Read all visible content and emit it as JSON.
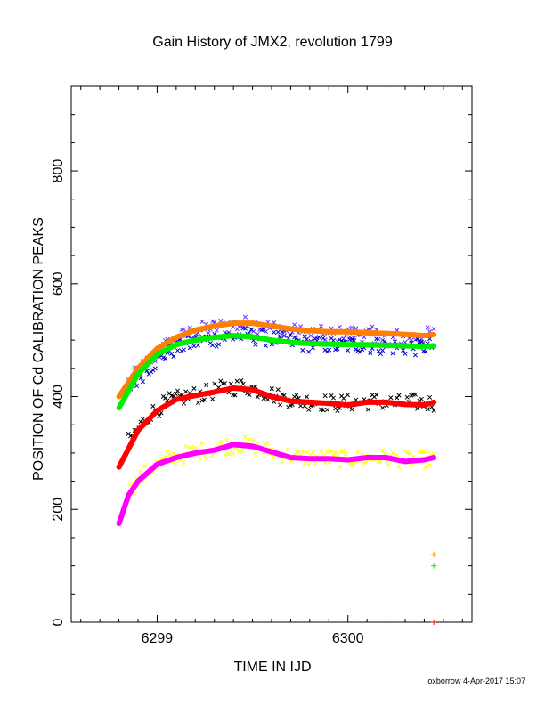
{
  "chart_data": {
    "type": "scatter",
    "title": "Gain History of JMX2, revolution 1799",
    "xlabel": "TIME IN IJD",
    "ylabel": "POSITION OF Cd CALIBRATION PEAKS",
    "xlim": [
      6298.55,
      6300.65
    ],
    "ylim": [
      0,
      950
    ],
    "x_ticks": [
      "6299",
      "6300"
    ],
    "y_ticks": [
      "0",
      "200",
      "400",
      "600",
      "800"
    ],
    "grid": false,
    "legend": "none",
    "footer": "oxborrow  4-Apr-2017 15:07",
    "series": [
      {
        "color": "#6633ff",
        "style": "scatter",
        "x": [
          6298.85,
          6298.95,
          6299.05,
          6299.15,
          6299.25,
          6299.35,
          6299.45,
          6299.55,
          6299.65,
          6299.75,
          6299.85,
          6299.95,
          6300.05,
          6300.15,
          6300.25,
          6300.35,
          6300.45
        ],
        "y": [
          425,
          460,
          490,
          510,
          520,
          525,
          528,
          525,
          518,
          512,
          510,
          510,
          512,
          508,
          505,
          505,
          510
        ]
      },
      {
        "color": "#0000cc",
        "style": "scatter",
        "x": [
          6298.85,
          6298.95,
          6299.05,
          6299.15,
          6299.25,
          6299.35,
          6299.45,
          6299.55,
          6299.65,
          6299.75,
          6299.85,
          6299.95,
          6300.05,
          6300.15,
          6300.25,
          6300.35,
          6300.45
        ],
        "y": [
          415,
          450,
          478,
          492,
          500,
          505,
          508,
          505,
          500,
          495,
          492,
          490,
          492,
          490,
          488,
          487,
          490
        ]
      },
      {
        "color": "#000000",
        "style": "scatter",
        "x": [
          6298.85,
          6298.95,
          6299.05,
          6299.15,
          6299.25,
          6299.35,
          6299.45,
          6299.55,
          6299.65,
          6299.75,
          6299.85,
          6299.95,
          6300.05,
          6300.15,
          6300.25,
          6300.35,
          6300.45
        ],
        "y": [
          320,
          365,
          390,
          400,
          405,
          415,
          418,
          410,
          398,
          392,
          390,
          388,
          390,
          392,
          388,
          390,
          388
        ]
      },
      {
        "color": "#ffff00",
        "style": "scatter",
        "x": [
          6298.85,
          6298.95,
          6299.05,
          6299.15,
          6299.25,
          6299.35,
          6299.45,
          6299.55,
          6299.65,
          6299.75,
          6299.85,
          6299.95,
          6300.05,
          6300.15,
          6300.25,
          6300.35,
          6300.45
        ],
        "y": [
          230,
          268,
          288,
          298,
          305,
          312,
          315,
          308,
          298,
          292,
          292,
          290,
          290,
          292,
          290,
          288,
          290
        ]
      },
      {
        "color": "#ff7f00",
        "style": "line",
        "x": [
          6298.8,
          6298.9,
          6299.0,
          6299.1,
          6299.2,
          6299.3,
          6299.4,
          6299.5,
          6299.6,
          6299.7,
          6299.8,
          6299.9,
          6300.0,
          6300.1,
          6300.2,
          6300.3,
          6300.4,
          6300.45
        ],
        "y": [
          400,
          450,
          485,
          505,
          518,
          525,
          530,
          530,
          525,
          520,
          517,
          515,
          515,
          513,
          512,
          510,
          508,
          510
        ]
      },
      {
        "color": "#00ee00",
        "style": "line",
        "x": [
          6298.8,
          6298.9,
          6299.0,
          6299.1,
          6299.2,
          6299.3,
          6299.4,
          6299.5,
          6299.6,
          6299.7,
          6299.8,
          6299.9,
          6300.0,
          6300.1,
          6300.2,
          6300.3,
          6300.4,
          6300.45
        ],
        "y": [
          380,
          440,
          475,
          492,
          500,
          505,
          508,
          506,
          500,
          496,
          494,
          493,
          492,
          492,
          491,
          490,
          489,
          490
        ]
      },
      {
        "color": "#ff0000",
        "style": "line",
        "x": [
          6298.8,
          6298.9,
          6299.0,
          6299.1,
          6299.2,
          6299.3,
          6299.4,
          6299.5,
          6299.6,
          6299.7,
          6299.8,
          6299.9,
          6300.0,
          6300.1,
          6300.2,
          6300.3,
          6300.4,
          6300.45
        ],
        "y": [
          275,
          340,
          375,
          395,
          402,
          408,
          415,
          412,
          400,
          392,
          390,
          388,
          385,
          390,
          390,
          386,
          385,
          390
        ]
      },
      {
        "color": "#ff00ff",
        "style": "line",
        "x": [
          6298.8,
          6298.85,
          6298.9,
          6299.0,
          6299.1,
          6299.2,
          6299.3,
          6299.4,
          6299.5,
          6299.6,
          6299.7,
          6299.8,
          6299.9,
          6300.0,
          6300.1,
          6300.2,
          6300.3,
          6300.4,
          6300.45
        ],
        "y": [
          175,
          225,
          250,
          280,
          292,
          300,
          305,
          315,
          312,
          302,
          292,
          290,
          290,
          288,
          292,
          292,
          285,
          288,
          292
        ]
      }
    ],
    "markers": [
      {
        "color": "#ff7f00",
        "x": 6300.45,
        "y": 120
      },
      {
        "color": "#00ee00",
        "x": 6300.45,
        "y": 100
      },
      {
        "color": "#ff0000",
        "x": 6300.45,
        "y": 0
      }
    ]
  }
}
